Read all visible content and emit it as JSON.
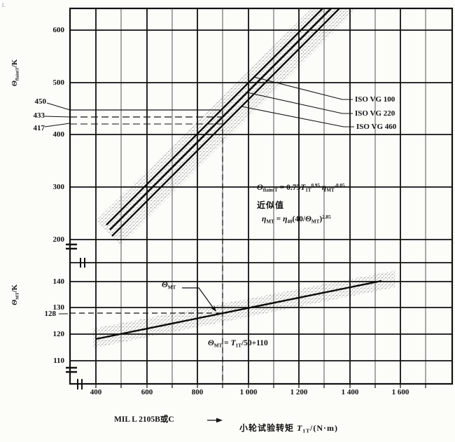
{
  "corner_mark": "1.",
  "top_chart": {
    "ylabel": [
      {
        "t": "Θ",
        "i": true
      },
      {
        "sub": "flaintT"
      },
      {
        "t": "/K"
      }
    ],
    "y_ticks": [
      "600",
      "500",
      "400",
      "300",
      "200"
    ],
    "ref_450": "450",
    "ref_433": "433",
    "ref_417": "417",
    "series_labels": [
      "ISO VG 100",
      "ISO VG 220",
      "ISO VG 460"
    ],
    "formula_theta": [
      {
        "t": "Θ",
        "i": true
      },
      {
        "sub": "flaintT"
      },
      {
        "t": " = 0.75"
      },
      {
        "t": "T",
        "i": true
      },
      {
        "sub": "1T"
      },
      {
        "sup": "0.95"
      },
      {
        "t": " "
      },
      {
        "t": "η",
        "i": true
      },
      {
        "sub": "MT"
      },
      {
        "sup": "-0.05"
      }
    ],
    "approx_note": "近似值",
    "formula_eta": [
      {
        "t": "η",
        "i": true
      },
      {
        "sub": "MT"
      },
      {
        "t": " = "
      },
      {
        "t": "η",
        "i": true
      },
      {
        "sub": "40"
      },
      {
        "t": "(40/"
      },
      {
        "t": "Θ",
        "i": true
      },
      {
        "sub": "MT"
      },
      {
        "t": ")"
      },
      {
        "sup": "2.85"
      }
    ]
  },
  "bottom_chart": {
    "ylabel": [
      {
        "t": "Θ",
        "i": true
      },
      {
        "sub": "MT"
      },
      {
        "t": "/K"
      }
    ],
    "y_ticks": [
      "140",
      "130",
      "120",
      "110"
    ],
    "ref_128": "128",
    "curve_label": [
      {
        "t": "Θ",
        "i": true
      },
      {
        "sub": "MT"
      }
    ],
    "formula": [
      {
        "t": "Θ",
        "i": true
      },
      {
        "sub": "MT"
      },
      {
        "t": " = "
      },
      {
        "t": "T",
        "i": true
      },
      {
        "sub": "1T"
      },
      {
        "t": "/50+110"
      }
    ],
    "mil_note": "MIL L 2105B或C",
    "x_ticks": [
      "400",
      "600",
      "800",
      "1 000",
      "1 200",
      "1 400",
      "1 600"
    ],
    "xlabel": [
      {
        "t": "小轮试验转矩 "
      },
      {
        "t": "T",
        "i": true
      },
      {
        "sub": "1T"
      },
      {
        "t": "/(N·m)"
      }
    ]
  },
  "chart_data": [
    {
      "type": "line",
      "title": "Mean flash temperature of test gears vs pinion test torque",
      "xlabel": "小轮试验转矩 T1T/(N·m)",
      "ylabel": "Θ_flaintT/K",
      "xlim": [
        300,
        1800
      ],
      "ylim": [
        200,
        643
      ],
      "x_ticks": [
        400,
        600,
        800,
        1000,
        1200,
        1400,
        1600
      ],
      "y_ticks": [
        200,
        300,
        400,
        500,
        600
      ],
      "grid": true,
      "axis_break_x": true,
      "legend_position": "right-inside-leaders",
      "series": [
        {
          "name": "ISO VG 100",
          "points": [
            [
              441,
              228
            ],
            [
              900,
              450
            ],
            [
              1294,
              642
            ]
          ]
        },
        {
          "name": "ISO VG 220",
          "points": [
            [
              455,
              219
            ],
            [
              900,
              433
            ],
            [
              1327,
              642
            ]
          ]
        },
        {
          "name": "ISO VG 460",
          "points": [
            [
              463,
              207
            ],
            [
              900,
              417
            ],
            [
              1360,
              642
            ]
          ]
        }
      ],
      "formulas": [
        "Θ_flaintT = 0.75·T1T^0.95·η_MT^-0.05",
        "近似值",
        "η_MT = η_40·(40/Θ_MT)^2.85"
      ],
      "annotations": {
        "reference_torque": 900,
        "reference_label": "MIL L 2105B或C",
        "values_at_reference": {
          "ISO VG 100": 450,
          "ISO VG 220": 433,
          "ISO VG 460": 417
        },
        "scatter_band": true
      }
    },
    {
      "type": "line",
      "title": "Test oil temperature vs pinion test torque",
      "xlabel": "小轮试验转矩 T1T/(N·m)",
      "ylabel": "Θ_MT/K",
      "xlim": [
        300,
        1800
      ],
      "ylim": [
        105,
        145
      ],
      "x_ticks": [
        400,
        600,
        800,
        1000,
        1200,
        1400,
        1600
      ],
      "y_ticks": [
        110,
        120,
        130,
        140
      ],
      "grid": true,
      "axis_break_y": true,
      "series": [
        {
          "name": "Θ_MT",
          "points": [
            [
              400,
              118
            ],
            [
              900,
              128
            ],
            [
              1525,
              140
            ]
          ]
        }
      ],
      "formulas": [
        "Θ_MT = T1T/50+110"
      ],
      "annotations": {
        "reference_torque": 900,
        "reference_label": "MIL L 2105B或C",
        "value_at_reference": 128,
        "scatter_band": true
      }
    }
  ]
}
